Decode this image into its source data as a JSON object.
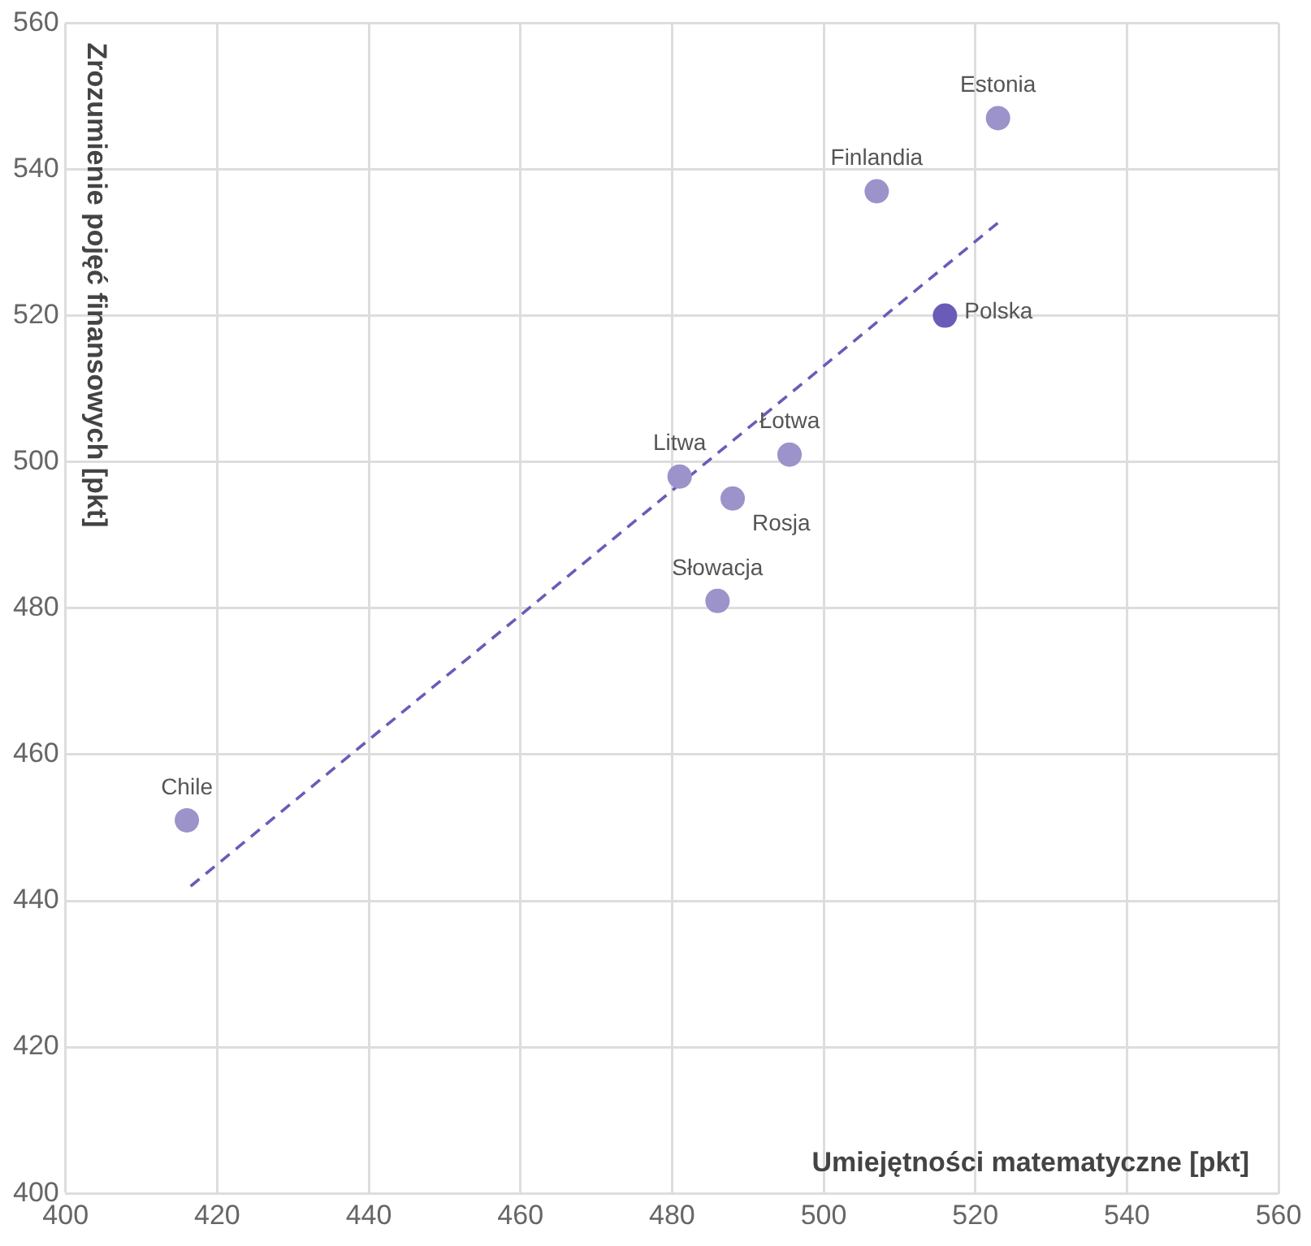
{
  "chart_data": {
    "type": "scatter",
    "xlabel": "Umiejętności matematyczne [pkt]",
    "ylabel": "Zrozumienie pojęć finansowych [pkt]",
    "xlim": [
      400,
      560
    ],
    "xticks": [
      400,
      420,
      440,
      460,
      480,
      500,
      520,
      540,
      560
    ],
    "ylim": [
      400,
      560
    ],
    "yticks": [
      400,
      420,
      440,
      460,
      480,
      500,
      520,
      540,
      560
    ],
    "grid": true,
    "legend": false,
    "marker": "circle",
    "series": [
      {
        "name": "Estonia",
        "color": "#9b93c9",
        "x": [
          523
        ],
        "values": [
          547
        ]
      },
      {
        "name": "Finlandia",
        "color": "#9b93c9",
        "x": [
          507
        ],
        "values": [
          537
        ]
      },
      {
        "name": "Polska",
        "color": "#6b5bb8",
        "x": [
          516
        ],
        "values": [
          520
        ]
      },
      {
        "name": "Łotwa",
        "color": "#9b93c9",
        "x": [
          495.5
        ],
        "values": [
          501
        ]
      },
      {
        "name": "Litwa",
        "color": "#9b93c9",
        "x": [
          481
        ],
        "values": [
          498
        ]
      },
      {
        "name": "Rosja",
        "color": "#9b93c9",
        "x": [
          488
        ],
        "values": [
          495
        ]
      },
      {
        "name": "Słowacja",
        "color": "#9b93c9",
        "x": [
          486
        ],
        "values": [
          481
        ]
      },
      {
        "name": "Chile",
        "color": "#9b93c9",
        "x": [
          416
        ],
        "values": [
          451
        ]
      },
      {
        "type": "line",
        "color": "#6b5bb8",
        "line_style": "dashed",
        "marker": "none",
        "x": [
          416.5,
          523
        ],
        "values": [
          442,
          532.7
        ]
      }
    ]
  }
}
